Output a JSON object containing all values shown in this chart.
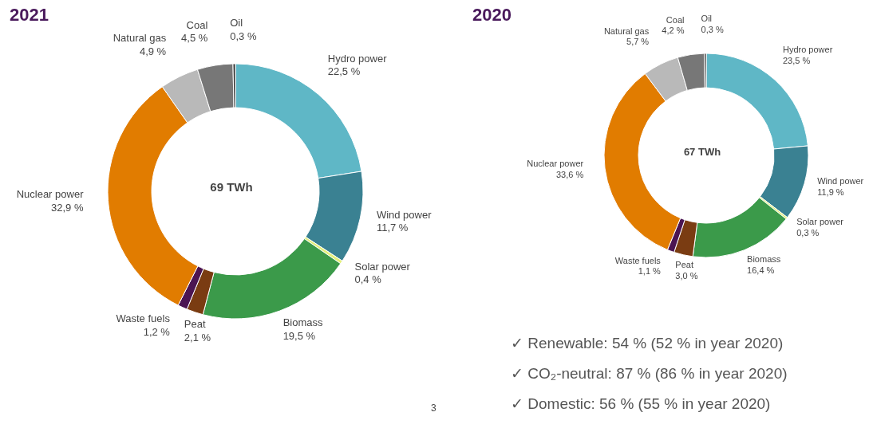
{
  "chart_data": [
    {
      "type": "donut",
      "title": "2021",
      "categories": [
        "Hydro power",
        "Wind power",
        "Solar power",
        "Biomass",
        "Peat",
        "Waste fuels",
        "Nuclear power",
        "Natural gas",
        "Coal",
        "Oil"
      ],
      "values": [
        22.5,
        11.7,
        0.4,
        19.5,
        2.1,
        1.2,
        32.9,
        4.9,
        4.5,
        0.3
      ],
      "value_labels": [
        "22,5 %",
        "11,7 %",
        "0,4 %",
        "19,5 %",
        "2,1 %",
        "1,2 %",
        "32,9 %",
        "4,9 %",
        "4,5 %",
        "0,3 %"
      ],
      "colors": [
        "#5fb7c6",
        "#3a8192",
        "#e3f07a",
        "#3b9a4a",
        "#7a3c12",
        "#4b1552",
        "#e17c00",
        "#b9b9b9",
        "#777777",
        "#333333"
      ],
      "annotations": [
        "69 TWh",
        "3"
      ]
    },
    {
      "type": "donut",
      "title": "2020",
      "categories": [
        "Hydro power",
        "Wind power",
        "Solar power",
        "Biomass",
        "Peat",
        "Waste fuels",
        "Nuclear power",
        "Natural gas",
        "Coal",
        "Oil"
      ],
      "values": [
        23.5,
        11.9,
        0.3,
        16.4,
        3.0,
        1.1,
        33.6,
        5.7,
        4.2,
        0.3
      ],
      "value_labels": [
        "23,5 %",
        "11,9 %",
        "0,3 %",
        "16,4 %",
        "3,0 %",
        "1,1 %",
        "33,6 %",
        "5,7 %",
        "4,2 %",
        "0,3 %"
      ],
      "colors": [
        "#5fb7c6",
        "#3a8192",
        "#e3f07a",
        "#3b9a4a",
        "#7a3c12",
        "#4b1552",
        "#e17c00",
        "#b9b9b9",
        "#777777",
        "#333333"
      ],
      "annotations": [
        "67 TWh",
        "✓ Renewable: 54 % (52 % in year 2020)",
        "✓ CO₂-neutral: 87 % (86 % in year 2020)",
        "✓ Domestic: 56 % (55 % in year 2020)"
      ]
    }
  ]
}
